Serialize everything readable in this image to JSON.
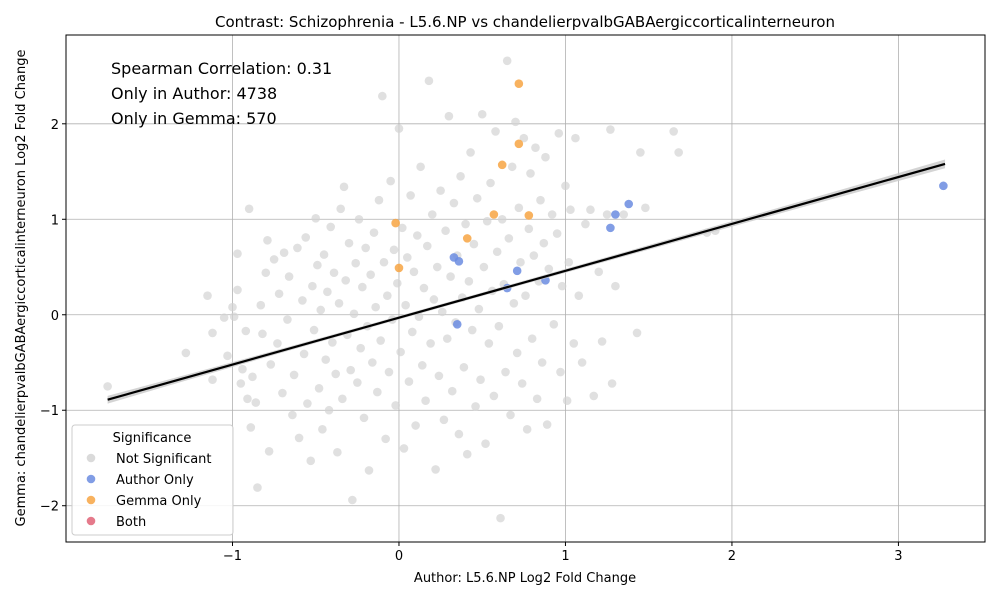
{
  "chart_data": {
    "type": "scatter",
    "title": "Contrast: Schizophrenia - L5.6.NP vs chandelierpvalbGABAergiccorticalinterneuron",
    "xlabel": "Author: L5.6.NP Log2 Fold Change",
    "ylabel": "Gemma: chandelierpvalbGABAergiccorticalinterneuron Log2 Fold Change",
    "xlim": [
      -2.0,
      3.52
    ],
    "ylim": [
      -2.38,
      2.93
    ],
    "x_ticks": [
      -1,
      0,
      1,
      2,
      3
    ],
    "x_tick_labels": [
      "−1",
      "0",
      "1",
      "2",
      "3"
    ],
    "y_ticks": [
      -2,
      -1,
      0,
      1,
      2
    ],
    "y_tick_labels": [
      "−2",
      "−1",
      "0",
      "1",
      "2"
    ],
    "grid": true,
    "annotations": [
      "Spearman Correlation: 0.31",
      "Only in Author: 4738",
      "Only in Gemma: 570"
    ],
    "legend": {
      "title": "Significance",
      "placement": "lower-left",
      "entries": [
        {
          "label": "Not Significant",
          "color": "#d3d3d3"
        },
        {
          "label": "Author Only",
          "color": "#6b8ce0"
        },
        {
          "label": "Gemma Only",
          "color": "#f7a443"
        },
        {
          "label": "Both",
          "color": "#e06377"
        }
      ]
    },
    "regression": {
      "x_range": [
        -1.75,
        3.28
      ],
      "y_at_x_min": -0.89,
      "y_at_x_max": 1.58,
      "ci_color": "#cccccc"
    },
    "series": [
      {
        "name": "Not Significant",
        "color": "#d3d3d3",
        "points": [
          [
            -1.75,
            -0.75
          ],
          [
            -1.28,
            -0.4
          ],
          [
            -1.15,
            0.2
          ],
          [
            -1.12,
            -0.19
          ],
          [
            -1.12,
            -0.68
          ],
          [
            -1.05,
            -0.03
          ],
          [
            -1.03,
            -0.43
          ],
          [
            -1.0,
            0.08
          ],
          [
            -0.99,
            -0.02
          ],
          [
            -0.97,
            0.64
          ],
          [
            -0.97,
            0.26
          ],
          [
            -0.95,
            -0.72
          ],
          [
            -0.94,
            -0.57
          ],
          [
            -0.92,
            -0.17
          ],
          [
            -0.91,
            -0.88
          ],
          [
            -0.9,
            1.11
          ],
          [
            -0.89,
            -1.18
          ],
          [
            -0.88,
            -0.65
          ],
          [
            -0.86,
            -0.92
          ],
          [
            -0.85,
            -1.81
          ],
          [
            -0.83,
            0.1
          ],
          [
            -0.82,
            -0.2
          ],
          [
            -0.8,
            0.44
          ],
          [
            -0.79,
            0.78
          ],
          [
            -0.78,
            -1.43
          ],
          [
            -0.77,
            -0.52
          ],
          [
            -0.75,
            0.58
          ],
          [
            -0.73,
            -0.3
          ],
          [
            -0.72,
            0.22
          ],
          [
            -0.7,
            -0.82
          ],
          [
            -0.69,
            0.65
          ],
          [
            -0.67,
            -0.05
          ],
          [
            -0.66,
            0.4
          ],
          [
            -0.64,
            -1.05
          ],
          [
            -0.63,
            -0.63
          ],
          [
            -0.61,
            0.7
          ],
          [
            -0.6,
            -1.29
          ],
          [
            -0.58,
            0.15
          ],
          [
            -0.57,
            -0.41
          ],
          [
            -0.56,
            0.81
          ],
          [
            -0.55,
            -0.93
          ],
          [
            -0.53,
            -1.53
          ],
          [
            -0.52,
            0.3
          ],
          [
            -0.51,
            -0.16
          ],
          [
            -0.5,
            1.01
          ],
          [
            -0.49,
            0.52
          ],
          [
            -0.48,
            -0.77
          ],
          [
            -0.47,
            0.05
          ],
          [
            -0.46,
            -1.2
          ],
          [
            -0.45,
            0.63
          ],
          [
            -0.44,
            -0.47
          ],
          [
            -0.43,
            0.24
          ],
          [
            -0.42,
            -1.0
          ],
          [
            -0.41,
            0.92
          ],
          [
            -0.4,
            -0.29
          ],
          [
            -0.39,
            0.44
          ],
          [
            -0.38,
            -0.62
          ],
          [
            -0.37,
            -1.44
          ],
          [
            -0.36,
            0.12
          ],
          [
            -0.35,
            1.11
          ],
          [
            -0.34,
            -0.88
          ],
          [
            -0.33,
            1.34
          ],
          [
            -0.32,
            0.36
          ],
          [
            -0.31,
            -0.21
          ],
          [
            -0.3,
            0.75
          ],
          [
            -0.29,
            -0.58
          ],
          [
            -0.28,
            -1.94
          ],
          [
            -0.27,
            0.01
          ],
          [
            -0.26,
            0.54
          ],
          [
            -0.25,
            -0.71
          ],
          [
            -0.24,
            1.0
          ],
          [
            -0.23,
            -0.35
          ],
          [
            -0.22,
            0.29
          ],
          [
            -0.21,
            -1.08
          ],
          [
            -0.2,
            0.7
          ],
          [
            -0.19,
            -0.12
          ],
          [
            -0.18,
            -1.63
          ],
          [
            -0.17,
            0.42
          ],
          [
            -0.16,
            -0.5
          ],
          [
            -0.15,
            0.86
          ],
          [
            -0.14,
            0.08
          ],
          [
            -0.13,
            -0.81
          ],
          [
            -0.12,
            1.2
          ],
          [
            -0.11,
            -0.27
          ],
          [
            -0.1,
            2.29
          ],
          [
            -0.09,
            0.55
          ],
          [
            -0.08,
            -1.3
          ],
          [
            -0.07,
            0.2
          ],
          [
            -0.06,
            -0.6
          ],
          [
            -0.05,
            1.4
          ],
          [
            -0.04,
            -0.05
          ],
          [
            -0.03,
            0.68
          ],
          [
            -0.02,
            -0.95
          ],
          [
            -0.01,
            0.33
          ],
          [
            0.0,
            1.95
          ],
          [
            0.01,
            -0.39
          ],
          [
            0.02,
            0.91
          ],
          [
            0.03,
            -1.4
          ],
          [
            0.04,
            0.1
          ],
          [
            0.05,
            0.6
          ],
          [
            0.06,
            -0.7
          ],
          [
            0.07,
            1.25
          ],
          [
            0.08,
            -0.18
          ],
          [
            0.09,
            0.45
          ],
          [
            0.1,
            -1.16
          ],
          [
            0.11,
            0.83
          ],
          [
            0.12,
            -0.02
          ],
          [
            0.13,
            1.55
          ],
          [
            0.14,
            -0.53
          ],
          [
            0.15,
            0.28
          ],
          [
            0.16,
            -0.9
          ],
          [
            0.17,
            0.72
          ],
          [
            0.18,
            2.45
          ],
          [
            0.19,
            -0.3
          ],
          [
            0.2,
            1.05
          ],
          [
            0.21,
            0.16
          ],
          [
            0.22,
            -1.62
          ],
          [
            0.23,
            0.5
          ],
          [
            0.24,
            -0.64
          ],
          [
            0.25,
            1.3
          ],
          [
            0.26,
            0.03
          ],
          [
            0.27,
            -1.1
          ],
          [
            0.28,
            0.88
          ],
          [
            0.29,
            -0.25
          ],
          [
            0.3,
            2.08
          ],
          [
            0.31,
            0.4
          ],
          [
            0.32,
            -0.8
          ],
          [
            0.33,
            1.17
          ],
          [
            0.34,
            -0.08
          ],
          [
            0.35,
            0.62
          ],
          [
            0.36,
            -1.25
          ],
          [
            0.37,
            1.45
          ],
          [
            0.38,
            0.18
          ],
          [
            0.39,
            -0.55
          ],
          [
            0.4,
            0.95
          ],
          [
            0.41,
            -1.46
          ],
          [
            0.42,
            0.35
          ],
          [
            0.43,
            1.7
          ],
          [
            0.44,
            -0.16
          ],
          [
            0.45,
            0.74
          ],
          [
            0.46,
            -0.96
          ],
          [
            0.47,
            1.22
          ],
          [
            0.48,
            0.06
          ],
          [
            0.49,
            -0.68
          ],
          [
            0.5,
            2.1
          ],
          [
            0.51,
            0.5
          ],
          [
            0.52,
            -1.35
          ],
          [
            0.53,
            0.98
          ],
          [
            0.54,
            -0.3
          ],
          [
            0.55,
            1.38
          ],
          [
            0.56,
            0.25
          ],
          [
            0.57,
            -0.85
          ],
          [
            0.58,
            1.92
          ],
          [
            0.59,
            0.66
          ],
          [
            0.6,
            -0.12
          ],
          [
            0.61,
            -2.13
          ],
          [
            0.62,
            1.0
          ],
          [
            0.63,
            0.32
          ],
          [
            0.64,
            -0.6
          ],
          [
            0.65,
            2.66
          ],
          [
            0.66,
            0.8
          ],
          [
            0.67,
            -1.05
          ],
          [
            0.68,
            1.55
          ],
          [
            0.69,
            0.12
          ],
          [
            0.7,
            2.02
          ],
          [
            0.71,
            -0.4
          ],
          [
            0.72,
            1.12
          ],
          [
            0.73,
            0.55
          ],
          [
            0.74,
            -0.72
          ],
          [
            0.75,
            1.85
          ],
          [
            0.76,
            0.2
          ],
          [
            0.77,
            -1.2
          ],
          [
            0.78,
            0.9
          ],
          [
            0.79,
            1.48
          ],
          [
            0.8,
            -0.25
          ],
          [
            0.81,
            0.62
          ],
          [
            0.82,
            1.75
          ],
          [
            0.83,
            -0.88
          ],
          [
            0.84,
            0.35
          ],
          [
            0.85,
            1.2
          ],
          [
            0.86,
            -0.5
          ],
          [
            0.87,
            0.75
          ],
          [
            0.88,
            1.65
          ],
          [
            0.89,
            -1.15
          ],
          [
            0.9,
            0.48
          ],
          [
            0.92,
            1.05
          ],
          [
            0.93,
            -0.1
          ],
          [
            0.95,
            0.85
          ],
          [
            0.96,
            1.9
          ],
          [
            0.97,
            -0.6
          ],
          [
            0.98,
            0.3
          ],
          [
            1.0,
            1.35
          ],
          [
            1.01,
            -0.9
          ],
          [
            1.02,
            0.55
          ],
          [
            1.03,
            1.1
          ],
          [
            1.05,
            -0.3
          ],
          [
            1.06,
            1.85
          ],
          [
            1.08,
            0.2
          ],
          [
            1.1,
            -0.5
          ],
          [
            1.12,
            0.95
          ],
          [
            1.15,
            1.1
          ],
          [
            1.17,
            -0.85
          ],
          [
            1.2,
            0.45
          ],
          [
            1.22,
            -0.28
          ],
          [
            1.25,
            1.05
          ],
          [
            1.27,
            1.94
          ],
          [
            1.28,
            -0.72
          ],
          [
            1.3,
            0.3
          ],
          [
            1.35,
            1.05
          ],
          [
            1.43,
            -0.19
          ],
          [
            1.45,
            1.7
          ],
          [
            1.48,
            1.12
          ],
          [
            1.65,
            1.92
          ],
          [
            1.68,
            1.7
          ],
          [
            1.85,
            0.86
          ],
          [
            1.9,
            0.88
          ]
        ]
      },
      {
        "name": "Author Only",
        "color": "#6b8ce0",
        "points": [
          [
            0.33,
            0.6
          ],
          [
            0.35,
            -0.1
          ],
          [
            0.36,
            0.56
          ],
          [
            0.65,
            0.28
          ],
          [
            0.71,
            0.46
          ],
          [
            0.88,
            0.36
          ],
          [
            1.27,
            0.91
          ],
          [
            1.3,
            1.05
          ],
          [
            1.38,
            1.16
          ],
          [
            3.27,
            1.35
          ]
        ]
      },
      {
        "name": "Gemma Only",
        "color": "#f7a443",
        "points": [
          [
            -0.02,
            0.96
          ],
          [
            0.0,
            0.49
          ],
          [
            0.41,
            0.8
          ],
          [
            0.57,
            1.05
          ],
          [
            0.62,
            1.57
          ],
          [
            0.72,
            1.79
          ],
          [
            0.72,
            2.42
          ],
          [
            0.78,
            1.04
          ]
        ]
      }
    ]
  }
}
